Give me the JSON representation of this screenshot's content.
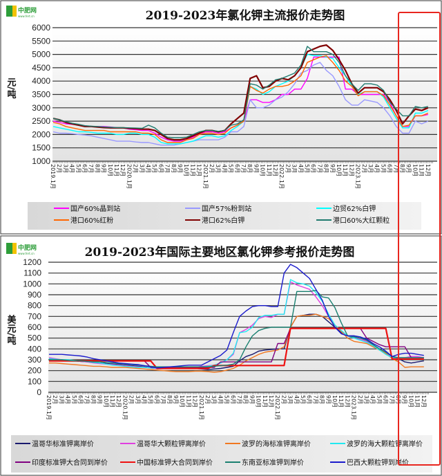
{
  "logo": {
    "name": "中肥网",
    "url_text": "www.fert.cn",
    "colors": [
      "#2e9e3a",
      "#f2c200"
    ]
  },
  "highlight": {
    "color": "#e8261f",
    "months": [
      "2023.8月",
      "12月"
    ]
  },
  "chart_data": [
    {
      "type": "line",
      "title": "2019-2023年氯化钾主流报价走势图",
      "ylabel": "元/吨",
      "ylim": [
        1000,
        6000
      ],
      "yticks": [
        1000,
        1500,
        2000,
        2500,
        3000,
        3500,
        4000,
        4500,
        5000,
        5500,
        6000
      ],
      "grid": true,
      "legend": "bottom",
      "categories": [
        "2019.1月",
        "2月",
        "3月",
        "4月",
        "5月",
        "6月",
        "7月",
        "8月",
        "9月",
        "10月",
        "11月",
        "12月",
        "2020.1月",
        "2月",
        "3月",
        "4月",
        "5月",
        "6月",
        "7月",
        "8月",
        "9月",
        "10月",
        "11月",
        "12月",
        "2021.1月",
        "2月",
        "3月",
        "4月",
        "5月",
        "6月",
        "7月",
        "8月",
        "9月",
        "10月",
        "11月",
        "12月",
        "2022.1月",
        "2月",
        "3月",
        "4月",
        "5月",
        "6月",
        "7月",
        "8月",
        "9月",
        "10月",
        "11月",
        "12月",
        "2023.1月",
        "2月",
        "3月",
        "4月",
        "5月",
        "6月",
        "7月",
        "8月",
        "9月",
        "10月",
        "11月",
        "12月"
      ],
      "series": [
        {
          "name": "国产60%晶到站",
          "color": "#ff00ff",
          "values": [
            2500,
            2450,
            2400,
            2380,
            2350,
            2330,
            2300,
            2300,
            2300,
            2280,
            2260,
            2250,
            2200,
            2180,
            2150,
            2150,
            2050,
            1900,
            1800,
            1750,
            1750,
            1800,
            1900,
            2000,
            2100,
            2100,
            2050,
            2100,
            2250,
            2350,
            2500,
            3300,
            3300,
            3200,
            3200,
            3300,
            3500,
            3500,
            3700,
            3700,
            4100,
            4900,
            4900,
            4900,
            4900,
            4900,
            3700,
            3700,
            3500,
            3500,
            3500,
            3500,
            3500,
            3200,
            2700,
            2300,
            2300,
            2700,
            2700,
            2750
          ]
        },
        {
          "name": "国产57%粉到站",
          "color": "#9999ff",
          "values": [
            2100,
            2050,
            2050,
            2030,
            2000,
            1980,
            1950,
            1900,
            1850,
            1800,
            1750,
            1750,
            1750,
            1720,
            1700,
            1700,
            1650,
            1600,
            1600,
            1600,
            1650,
            1700,
            1750,
            1800,
            1800,
            1800,
            1800,
            1900,
            2100,
            2100,
            2300,
            3300,
            3000,
            3000,
            3100,
            3300,
            3400,
            3600,
            3900,
            4300,
            4400,
            4600,
            4700,
            4400,
            4200,
            3800,
            3300,
            3100,
            3100,
            3300,
            3250,
            3200,
            3000,
            2700,
            2300,
            2050,
            2050,
            2500,
            2400,
            2500
          ]
        },
        {
          "name": "边贸62%白钾",
          "color": "#00ffff",
          "values": [
            2300,
            2250,
            2200,
            2150,
            2100,
            2100,
            2080,
            2050,
            2050,
            2050,
            2000,
            2000,
            2050,
            2050,
            2000,
            2000,
            1900,
            1700,
            1650,
            1650,
            1650,
            1700,
            1750,
            1850,
            1950,
            1950,
            1900,
            1950,
            2150,
            2300,
            2500,
            3800,
            3700,
            3500,
            3600,
            3800,
            3900,
            4000,
            4200,
            4500,
            5000,
            4950,
            4950,
            4900,
            4850,
            4500,
            4200,
            3800,
            3500,
            3600,
            3600,
            3600,
            3400,
            3000,
            2600,
            2250,
            2250,
            2800,
            2800,
            2900
          ]
        },
        {
          "name": "港口60%红粉",
          "color": "#ff6600",
          "values": [
            2450,
            2400,
            2300,
            2250,
            2200,
            2150,
            2150,
            2150,
            2150,
            2100,
            2100,
            2100,
            2100,
            2100,
            2050,
            2050,
            2000,
            1800,
            1700,
            1700,
            1700,
            1800,
            1850,
            2000,
            2050,
            2050,
            2000,
            2050,
            2250,
            2350,
            2500,
            3800,
            3650,
            3550,
            3700,
            3800,
            3800,
            3850,
            4000,
            4200,
            4700,
            4800,
            4900,
            4950,
            4700,
            4400,
            4000,
            3800,
            3450,
            3600,
            3600,
            3600,
            3450,
            3100,
            2700,
            2300,
            2350,
            2700,
            2700,
            2800
          ]
        },
        {
          "name": "港口62%白钾",
          "color": "#800000",
          "values": [
            2600,
            2550,
            2450,
            2400,
            2350,
            2300,
            2300,
            2280,
            2260,
            2250,
            2250,
            2250,
            2230,
            2220,
            2200,
            2200,
            2150,
            2000,
            1850,
            1800,
            1800,
            1850,
            1950,
            2050,
            2150,
            2150,
            2100,
            2150,
            2400,
            2600,
            2800,
            4100,
            4200,
            3750,
            3800,
            4000,
            4100,
            4050,
            4200,
            4500,
            5100,
            5200,
            5300,
            5350,
            5150,
            4800,
            4400,
            3900,
            3550,
            3750,
            3750,
            3750,
            3600,
            3300,
            2900,
            2400,
            2700,
            2950,
            2900,
            3000
          ]
        },
        {
          "name": "港口60%大红颗粒",
          "color": "#1f7a6e",
          "values": [
            2600,
            2550,
            2480,
            2420,
            2380,
            2330,
            2310,
            2300,
            2280,
            2270,
            2260,
            2260,
            2250,
            2240,
            2230,
            2350,
            2250,
            2050,
            1900,
            1880,
            1880,
            1900,
            2000,
            2100,
            2150,
            2150,
            2120,
            2150,
            2350,
            2400,
            2550,
            3900,
            3850,
            3700,
            3850,
            4050,
            4100,
            4200,
            4300,
            4600,
            5300,
            5100,
            5100,
            5100,
            5000,
            4700,
            4200,
            3900,
            3650,
            3900,
            3900,
            3850,
            3650,
            3200,
            2950,
            2700,
            2700,
            3050,
            3000,
            3050
          ]
        }
      ]
    },
    {
      "type": "line",
      "title": "2019-2023年国际主要地区氯化钾参考报价走势图",
      "ylabel": "美元/吨",
      "ylim": [
        0,
        1200
      ],
      "yticks": [
        0,
        100,
        200,
        300,
        400,
        500,
        600,
        700,
        800,
        900,
        1000,
        1100,
        1200
      ],
      "grid": true,
      "legend": "bottom",
      "categories": [
        "2019.1月",
        "2月",
        "3月",
        "4月",
        "5月",
        "6月",
        "7月",
        "8月",
        "9月",
        "10月",
        "11月",
        "12月",
        "2020.1月",
        "2月",
        "3月",
        "4月",
        "5月",
        "6月",
        "7月",
        "8月",
        "9月",
        "10月",
        "11月",
        "12月",
        "2021.1月",
        "2月",
        "3月",
        "4月",
        "5月",
        "6月",
        "7月",
        "8月",
        "9月",
        "10月",
        "11月",
        "12月",
        "2022.1月",
        "2月",
        "3月",
        "4月",
        "5月",
        "6月",
        "7月",
        "8月",
        "9月",
        "10月",
        "11月",
        "12月",
        "2023.1月",
        "2月",
        "3月",
        "4月",
        "5月",
        "6月",
        "7月",
        "8月",
        "9月",
        "10月",
        "11月",
        "12月"
      ],
      "series": [
        {
          "name": "温哥华标准钾离岸价",
          "color": "#1a1a6e",
          "values": [
            300,
            300,
            290,
            290,
            290,
            285,
            280,
            275,
            270,
            265,
            260,
            255,
            250,
            245,
            240,
            235,
            225,
            220,
            220,
            220,
            220,
            220,
            220,
            220,
            215,
            210,
            215,
            220,
            230,
            240,
            290,
            330,
            350,
            380,
            390,
            395,
            400,
            400,
            600,
            700,
            710,
            720,
            720,
            700,
            650,
            600,
            550,
            520,
            520,
            510,
            480,
            440,
            400,
            370,
            330,
            310,
            280,
            270,
            280,
            290
          ]
        },
        {
          "name": "温哥华大颗粒钾离岸价",
          "color": "#e040e0",
          "values": [
            320,
            310,
            300,
            295,
            290,
            285,
            280,
            270,
            265,
            260,
            255,
            250,
            245,
            240,
            235,
            230,
            225,
            220,
            220,
            220,
            220,
            220,
            220,
            230,
            240,
            245,
            250,
            270,
            300,
            350,
            550,
            580,
            620,
            680,
            700,
            690,
            720,
            720,
            1020,
            990,
            970,
            950,
            880,
            800,
            700,
            620,
            560,
            520,
            500,
            490,
            470,
            430,
            400,
            360,
            330,
            320,
            320,
            330,
            330,
            320
          ]
        },
        {
          "name": "波罗的海标准钾离岸价",
          "color": "#f07820",
          "values": [
            270,
            270,
            265,
            260,
            255,
            250,
            245,
            240,
            240,
            235,
            230,
            230,
            230,
            225,
            220,
            215,
            210,
            205,
            200,
            195,
            190,
            190,
            190,
            195,
            195,
            190,
            185,
            190,
            205,
            220,
            250,
            290,
            320,
            350,
            370,
            380,
            390,
            420,
            600,
            700,
            710,
            710,
            720,
            700,
            680,
            620,
            560,
            500,
            470,
            460,
            450,
            420,
            390,
            360,
            310,
            280,
            230,
            235,
            235,
            235
          ]
        },
        {
          "name": "波罗的海大颗粒钾离岸价",
          "color": "#20e8f0",
          "values": [
            310,
            305,
            300,
            300,
            295,
            290,
            285,
            275,
            270,
            260,
            250,
            245,
            240,
            235,
            230,
            230,
            225,
            225,
            225,
            225,
            225,
            225,
            225,
            230,
            235,
            240,
            250,
            270,
            300,
            360,
            550,
            560,
            600,
            690,
            710,
            710,
            720,
            720,
            1040,
            1010,
            1000,
            980,
            920,
            840,
            720,
            620,
            570,
            520,
            500,
            480,
            460,
            430,
            390,
            350,
            320,
            310,
            310,
            310,
            310,
            310
          ]
        },
        {
          "name": "印度标准钾大合同到岸价",
          "color": "#800080",
          "values": [
            290,
            290,
            290,
            290,
            290,
            290,
            290,
            290,
            290,
            290,
            290,
            290,
            290,
            290,
            290,
            290,
            230,
            230,
            230,
            230,
            230,
            230,
            230,
            230,
            230,
            230,
            230,
            280,
            280,
            280,
            280,
            280,
            280,
            280,
            280,
            280,
            450,
            450,
            590,
            590,
            590,
            590,
            590,
            590,
            590,
            590,
            590,
            590,
            590,
            590,
            500,
            470,
            440,
            420,
            420,
            420,
            420,
            320,
            320,
            320
          ]
        },
        {
          "name": "中国标准钾大合同到岸价",
          "color": "#ee1111",
          "values": [
            290,
            290,
            290,
            290,
            290,
            290,
            290,
            290,
            290,
            290,
            290,
            290,
            290,
            290,
            290,
            290,
            290,
            220,
            220,
            220,
            220,
            220,
            220,
            220,
            220,
            220,
            247,
            247,
            247,
            247,
            247,
            247,
            247,
            247,
            247,
            247,
            247,
            247,
            590,
            590,
            590,
            590,
            590,
            590,
            590,
            590,
            590,
            590,
            590,
            590,
            590,
            590,
            590,
            590,
            307,
            307,
            307,
            307,
            307,
            307
          ]
        },
        {
          "name": "东南亚标准钾到岸价",
          "color": "#1a8070",
          "values": [
            300,
            300,
            300,
            295,
            290,
            290,
            285,
            280,
            280,
            275,
            270,
            265,
            260,
            255,
            250,
            245,
            240,
            235,
            235,
            235,
            235,
            235,
            235,
            235,
            235,
            235,
            240,
            245,
            250,
            260,
            300,
            420,
            520,
            570,
            590,
            600,
            600,
            600,
            600,
            930,
            930,
            930,
            940,
            880,
            870,
            780,
            640,
            520,
            510,
            500,
            480,
            440,
            400,
            370,
            330,
            320,
            320,
            320,
            320,
            320
          ]
        },
        {
          "name": "巴西大颗粒钾到岸价",
          "color": "#1a1acc",
          "values": [
            350,
            350,
            350,
            345,
            340,
            335,
            325,
            310,
            300,
            290,
            280,
            270,
            265,
            260,
            255,
            245,
            235,
            225,
            230,
            235,
            240,
            245,
            250,
            250,
            250,
            280,
            310,
            340,
            390,
            550,
            700,
            750,
            790,
            800,
            800,
            790,
            790,
            1100,
            1180,
            1150,
            1100,
            1050,
            950,
            850,
            700,
            600,
            540,
            520,
            520,
            510,
            490,
            450,
            420,
            380,
            330,
            350,
            360,
            360,
            350,
            340
          ]
        }
      ]
    }
  ]
}
